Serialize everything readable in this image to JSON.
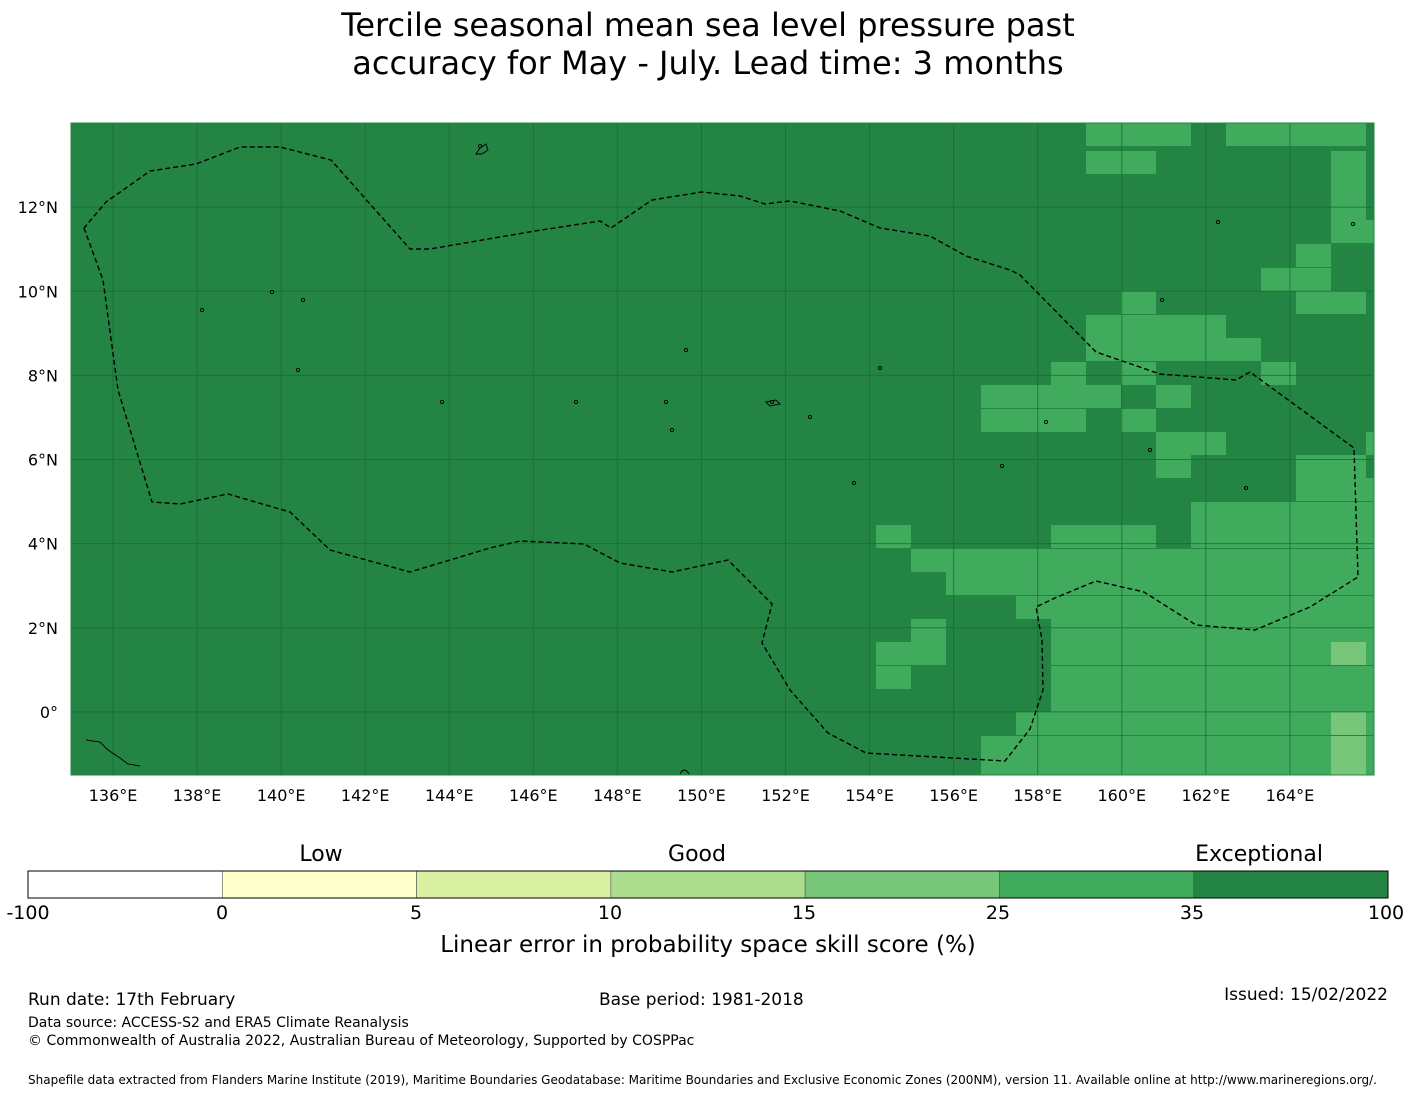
{
  "title": {
    "line1": "Tercile seasonal mean sea level pressure past",
    "line2": "accuracy for May - July. Lead time: 3 months"
  },
  "map": {
    "lon_range": [
      135,
      166
    ],
    "lat_range": [
      -1.5,
      14
    ],
    "lon_ticks": [
      "136°E",
      "138°E",
      "140°E",
      "142°E",
      "144°E",
      "146°E",
      "148°E",
      "150°E",
      "152°E",
      "154°E",
      "156°E",
      "158°E",
      "160°E",
      "162°E",
      "164°E"
    ],
    "lat_ticks": [
      "12°N",
      "10°N",
      "8°N",
      "6°N",
      "4°N",
      "2°N",
      "0°"
    ],
    "colors": {
      "exceptional": "#238443",
      "band_25_35": "#41ab5d",
      "band_15_25": "#78c679",
      "gridline": "#1a6b35",
      "eez_line": "#000000"
    },
    "cell_categories": "Each grid cell is classified into the colorbar bands; most cells are 35-100 (dark green), eastern cells 25-35, a few 15-25."
  },
  "colorbar": {
    "categories": [
      "Low",
      "Good",
      "Exceptional"
    ],
    "boundaries": [
      "-100",
      "0",
      "5",
      "10",
      "15",
      "25",
      "35",
      "100"
    ],
    "colors": [
      "#ffffff",
      "#ffffcc",
      "#d9f0a3",
      "#addd8e",
      "#78c679",
      "#41ab5d",
      "#238443"
    ],
    "axis_label": "Linear error in probability space skill score (%)"
  },
  "footer": {
    "run_date": "Run date: 17th February",
    "base_period": "Base period: 1981-2018",
    "issued": "Issued: 15/02/2022",
    "data_source": "Data source: ACCESS-S2 and ERA5 Climate Reanalysis",
    "copyright": "© Commonwealth of Australia 2022, Australian Bureau of Meteorology, Supported by COSPPac",
    "shapefile": "Shapefile data extracted from Flanders Marine Institute (2019), Maritime Boundaries Geodatabase: Maritime Boundaries and Exclusive Economic Zones (200NM), version 11. Available online at http://www.marineregions.org/."
  }
}
